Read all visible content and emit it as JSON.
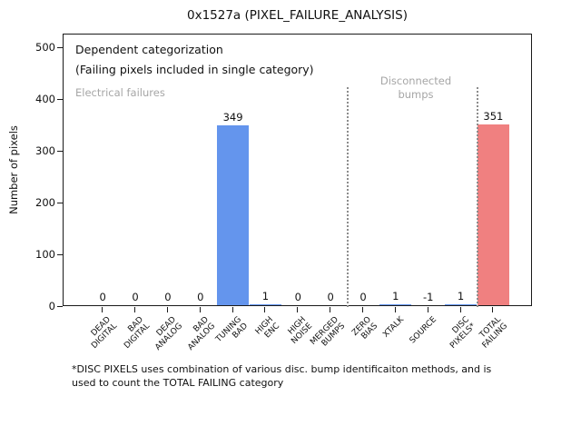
{
  "title": "0x1527a (PIXEL_FAILURE_ANALYSIS)",
  "chart_data": {
    "type": "bar",
    "title": "0x1527a (PIXEL_FAILURE_ANALYSIS)",
    "xlabel": "",
    "ylabel": "Number of pixels",
    "ylim": [
      0,
      528
    ],
    "yticks": [
      0,
      100,
      200,
      300,
      400,
      500
    ],
    "grid": false,
    "legend": null,
    "categories": [
      "DEAD\nDIGITAL",
      "BAD\nDIGITAL",
      "DEAD\nANALOG",
      "BAD\nANALOG",
      "TUNING\nBAD",
      "HIGH\nENC",
      "HIGH\nNOISE",
      "MERGED\nBUMPS",
      "ZERO\nBIAS",
      "XTALK",
      "SOURCE",
      "DISC\nPIXELS*",
      "TOTAL\nFAILING"
    ],
    "values": [
      0,
      0,
      0,
      0,
      349,
      1,
      0,
      0,
      0,
      1,
      -1,
      1,
      351
    ],
    "bar_colors": [
      "#6495ED",
      "#6495ED",
      "#6495ED",
      "#6495ED",
      "#6495ED",
      "#6495ED",
      "#6495ED",
      "#6495ED",
      "#6495ED",
      "#6495ED",
      "#6495ED",
      "#6495ED",
      "#F08080"
    ],
    "separator_color": "#8c8c8c",
    "separators_after_index": [
      7,
      11
    ],
    "annotations": {
      "dependent_line1": "Dependent categorization",
      "dependent_line2": "(Failing pixels included in single category)",
      "electrical": "Electrical failures",
      "disconnected": "Disconnected\nbumps"
    }
  },
  "footnote": "*DISC PIXELS uses combination of various disc. bump identificaiton methods, and is\nused to count the TOTAL FAILING category"
}
